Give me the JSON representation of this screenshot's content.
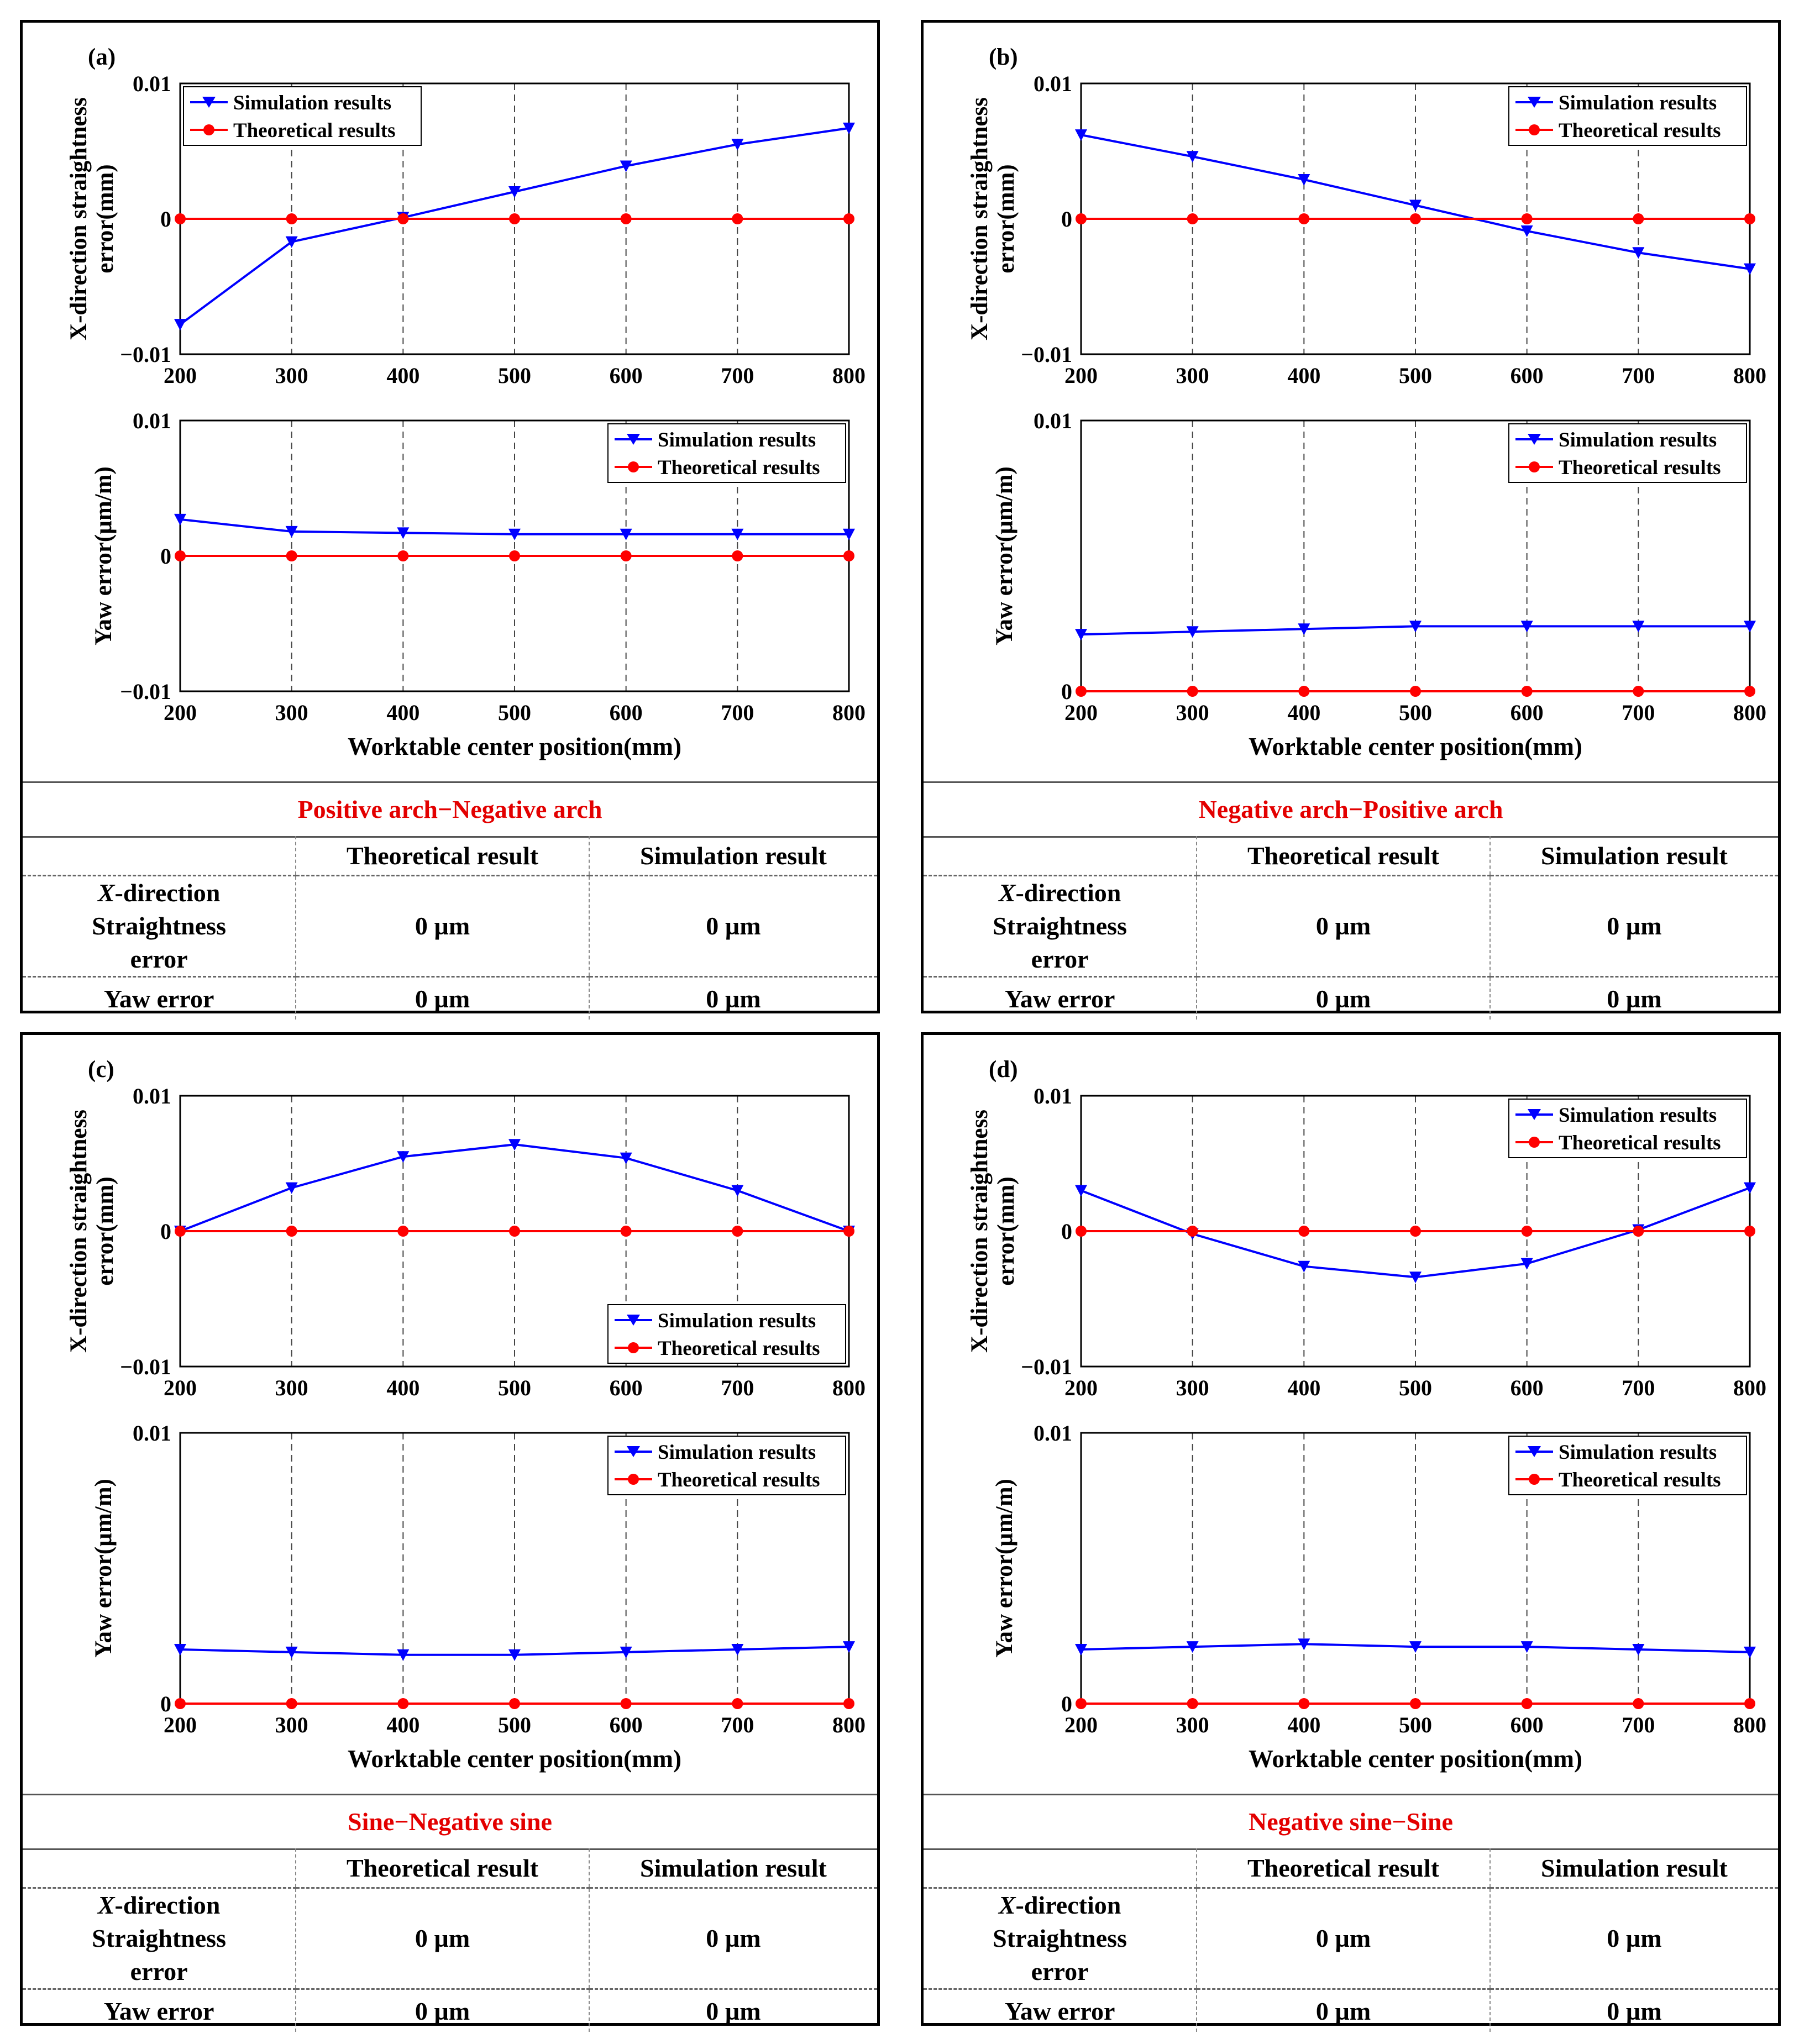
{
  "colors": {
    "simulation": "#0000ff",
    "theoretical": "#ff0000",
    "subtitle": "#e30000"
  },
  "legend": {
    "simulation": "Simulation results",
    "theoretical": "Theoretical results"
  },
  "table_headers": {
    "theoretical": "Theoretical result",
    "simulation": "Simulation result"
  },
  "panels": [
    {
      "label": "(a)",
      "subtitle": "Positive arch−Negative arch",
      "rows": [
        {
          "label_italic": "X",
          "label_rest": "-direction",
          "label_line2": "Straightness",
          "label_line3": "error",
          "theoretical": "0 µm",
          "simulation": "0 µm"
        },
        {
          "label_line1": "Yaw error",
          "theoretical": "0 µm",
          "simulation": "0 µm"
        }
      ]
    },
    {
      "label": "(b)",
      "subtitle": "Negative arch−Positive arch",
      "rows": [
        {
          "label_italic": "X",
          "label_rest": "-direction",
          "label_line2": "Straightness",
          "label_line3": "error",
          "theoretical": "0 µm",
          "simulation": "0 µm"
        },
        {
          "label_line1": "Yaw error",
          "theoretical": "0 µm",
          "simulation": "0 µm"
        }
      ]
    },
    {
      "label": "(c)",
      "subtitle": "Sine−Negative sine",
      "rows": [
        {
          "label_italic": "X",
          "label_rest": "-direction",
          "label_line2": "Straightness",
          "label_line3": "error",
          "theoretical": "0 µm",
          "simulation": "0 µm"
        },
        {
          "label_line1": "Yaw error",
          "theoretical": "0 µm",
          "simulation": "0 µm"
        }
      ]
    },
    {
      "label": "(d)",
      "subtitle": "Negative sine−Sine",
      "rows": [
        {
          "label_italic": "X",
          "label_rest": "-direction",
          "label_line2": "Straightness",
          "label_line3": "error",
          "theoretical": "0 µm",
          "simulation": "0 µm"
        },
        {
          "label_line1": "Yaw error",
          "theoretical": "0 µm",
          "simulation": "0 µm"
        }
      ]
    }
  ],
  "chart_data": [
    {
      "panel": "(a)",
      "chart": "top",
      "type": "line",
      "xlabel": "",
      "ylabel": "X-direction straightness error(mm)",
      "x": [
        200,
        300,
        400,
        500,
        600,
        700,
        800
      ],
      "xticks": [
        "200",
        "300",
        "400",
        "500",
        "600",
        "700",
        "800"
      ],
      "ylim": [
        -0.01,
        0.01
      ],
      "yticks": [
        "0.01",
        "0",
        "−0.01"
      ],
      "legend_position": "top-left",
      "series": [
        {
          "name": "Simulation results",
          "values": [
            -0.0078,
            -0.0017,
            0.0001,
            0.002,
            0.0039,
            0.0055,
            0.0067
          ]
        },
        {
          "name": "Theoretical results",
          "values": [
            0,
            0,
            0,
            0,
            0,
            0,
            0
          ]
        }
      ]
    },
    {
      "panel": "(a)",
      "chart": "bottom",
      "type": "line",
      "xlabel": "Worktable center position(mm)",
      "ylabel": "Yaw error(µm/m)",
      "x": [
        200,
        300,
        400,
        500,
        600,
        700,
        800
      ],
      "xticks": [
        "200",
        "300",
        "400",
        "500",
        "600",
        "700",
        "800"
      ],
      "ylim": [
        -0.01,
        0.01
      ],
      "yticks": [
        "0.01",
        "0",
        "−0.01"
      ],
      "legend_position": "top-right",
      "series": [
        {
          "name": "Simulation results",
          "values": [
            0.0027,
            0.0018,
            0.0017,
            0.0016,
            0.0016,
            0.0016,
            0.0016
          ]
        },
        {
          "name": "Theoretical results",
          "values": [
            0,
            0,
            0,
            0,
            0,
            0,
            0
          ]
        }
      ]
    },
    {
      "panel": "(b)",
      "chart": "top",
      "type": "line",
      "xlabel": "",
      "ylabel": "X-direction straightness error(mm)",
      "x": [
        200,
        300,
        400,
        500,
        600,
        700,
        800
      ],
      "xticks": [
        "200",
        "300",
        "400",
        "500",
        "600",
        "700",
        "800"
      ],
      "ylim": [
        -0.01,
        0.01
      ],
      "yticks": [
        "0.01",
        "0",
        "−0.01"
      ],
      "legend_position": "top-right",
      "series": [
        {
          "name": "Simulation results",
          "values": [
            0.0062,
            0.0046,
            0.0029,
            0.001,
            -0.0009,
            -0.0025,
            -0.0037
          ]
        },
        {
          "name": "Theoretical results",
          "values": [
            0,
            0,
            0,
            0,
            0,
            0,
            0
          ]
        }
      ]
    },
    {
      "panel": "(b)",
      "chart": "bottom",
      "type": "line",
      "xlabel": "Worktable center position(mm)",
      "ylabel": "Yaw error(µm/m)",
      "x": [
        200,
        300,
        400,
        500,
        600,
        700,
        800
      ],
      "xticks": [
        "200",
        "300",
        "400",
        "500",
        "600",
        "700",
        "800"
      ],
      "ylim": [
        0,
        0.01
      ],
      "yticks": [
        "0.01",
        "0"
      ],
      "legend_position": "top-right",
      "series": [
        {
          "name": "Simulation results",
          "values": [
            0.0021,
            0.0022,
            0.0023,
            0.0024,
            0.0024,
            0.0024,
            0.0024
          ]
        },
        {
          "name": "Theoretical results",
          "values": [
            0,
            0,
            0,
            0,
            0,
            0,
            0
          ]
        }
      ]
    },
    {
      "panel": "(c)",
      "chart": "top",
      "type": "line",
      "xlabel": "",
      "ylabel": "X-direction straightness error(mm)",
      "x": [
        200,
        300,
        400,
        500,
        600,
        700,
        800
      ],
      "xticks": [
        "200",
        "300",
        "400",
        "500",
        "600",
        "700",
        "800"
      ],
      "ylim": [
        -0.01,
        0.01
      ],
      "yticks": [
        "0.01",
        "0",
        "−0.01"
      ],
      "legend_position": "bottom-right",
      "series": [
        {
          "name": "Simulation results",
          "values": [
            0.0,
            0.0032,
            0.0055,
            0.0064,
            0.0054,
            0.003,
            0.0
          ]
        },
        {
          "name": "Theoretical results",
          "values": [
            0,
            0,
            0,
            0,
            0,
            0,
            0
          ]
        }
      ]
    },
    {
      "panel": "(c)",
      "chart": "bottom",
      "type": "line",
      "xlabel": "Worktable center position(mm)",
      "ylabel": "Yaw error(µm/m)",
      "x": [
        200,
        300,
        400,
        500,
        600,
        700,
        800
      ],
      "xticks": [
        "200",
        "300",
        "400",
        "500",
        "600",
        "700",
        "800"
      ],
      "ylim": [
        0,
        0.01
      ],
      "yticks": [
        "0.01",
        "0"
      ],
      "legend_position": "top-right",
      "series": [
        {
          "name": "Simulation results",
          "values": [
            0.002,
            0.0019,
            0.0018,
            0.0018,
            0.0019,
            0.002,
            0.0021
          ]
        },
        {
          "name": "Theoretical results",
          "values": [
            0,
            0,
            0,
            0,
            0,
            0,
            0
          ]
        }
      ]
    },
    {
      "panel": "(d)",
      "chart": "top",
      "type": "line",
      "xlabel": "",
      "ylabel": "X-direction straightness error(mm)",
      "x": [
        200,
        300,
        400,
        500,
        600,
        700,
        800
      ],
      "xticks": [
        "200",
        "300",
        "400",
        "500",
        "600",
        "700",
        "800"
      ],
      "ylim": [
        -0.01,
        0.01
      ],
      "yticks": [
        "0.01",
        "0",
        "−0.01"
      ],
      "legend_position": "top-right",
      "series": [
        {
          "name": "Simulation results",
          "values": [
            0.003,
            -0.0002,
            -0.0026,
            -0.0034,
            -0.0024,
            0.0001,
            0.0032
          ]
        },
        {
          "name": "Theoretical results",
          "values": [
            0,
            0,
            0,
            0,
            0,
            0,
            0
          ]
        }
      ]
    },
    {
      "panel": "(d)",
      "chart": "bottom",
      "type": "line",
      "xlabel": "Worktable center position(mm)",
      "ylabel": "Yaw error(µm/m)",
      "x": [
        200,
        300,
        400,
        500,
        600,
        700,
        800
      ],
      "xticks": [
        "200",
        "300",
        "400",
        "500",
        "600",
        "700",
        "800"
      ],
      "ylim": [
        0,
        0.01
      ],
      "yticks": [
        "0.01",
        "0"
      ],
      "legend_position": "top-right",
      "series": [
        {
          "name": "Simulation results",
          "values": [
            0.002,
            0.0021,
            0.0022,
            0.0021,
            0.0021,
            0.002,
            0.0019
          ]
        },
        {
          "name": "Theoretical results",
          "values": [
            0,
            0,
            0,
            0,
            0,
            0,
            0
          ]
        }
      ]
    }
  ]
}
